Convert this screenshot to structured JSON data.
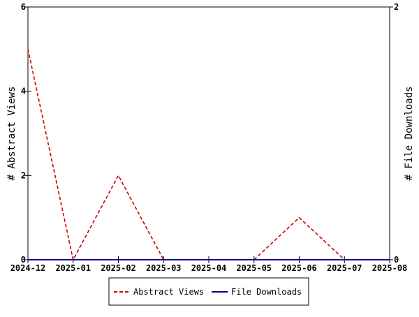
{
  "chart_data": {
    "type": "line",
    "x_categories": [
      "2024-12",
      "2025-01",
      "2025-02",
      "2025-03",
      "2025-04",
      "2025-05",
      "2025-06",
      "2025-07",
      "2025-08"
    ],
    "y_left": {
      "label": "# Abstract Views",
      "range": [
        0,
        6
      ],
      "ticks": [
        0,
        2,
        4,
        6
      ]
    },
    "y_right": {
      "label": "# File Downloads",
      "range": [
        0,
        2
      ],
      "ticks": [
        0,
        2
      ]
    },
    "series": [
      {
        "name": "Abstract Views",
        "axis": "left",
        "color": "#cc0000",
        "style": "dashed",
        "x": [
          "2024-12",
          "2025-01",
          "2025-02",
          "2025-03",
          "2025-04",
          "2025-05",
          "2025-06",
          "2025-07",
          "2025-08"
        ],
        "y": [
          5,
          0,
          2,
          0,
          0,
          0,
          1,
          0,
          0
        ]
      },
      {
        "name": "File Downloads",
        "axis": "right",
        "color": "#000099",
        "style": "solid",
        "x": [
          "2024-12",
          "2025-01",
          "2025-02",
          "2025-03",
          "2025-04",
          "2025-05",
          "2025-06",
          "2025-07",
          "2025-08"
        ],
        "y": [
          0,
          0,
          0,
          0,
          0,
          0,
          0,
          0,
          0
        ]
      }
    ],
    "legend": {
      "position": "bottom-center",
      "entries": [
        "Abstract Views",
        "File Downloads"
      ]
    },
    "grid": false
  }
}
